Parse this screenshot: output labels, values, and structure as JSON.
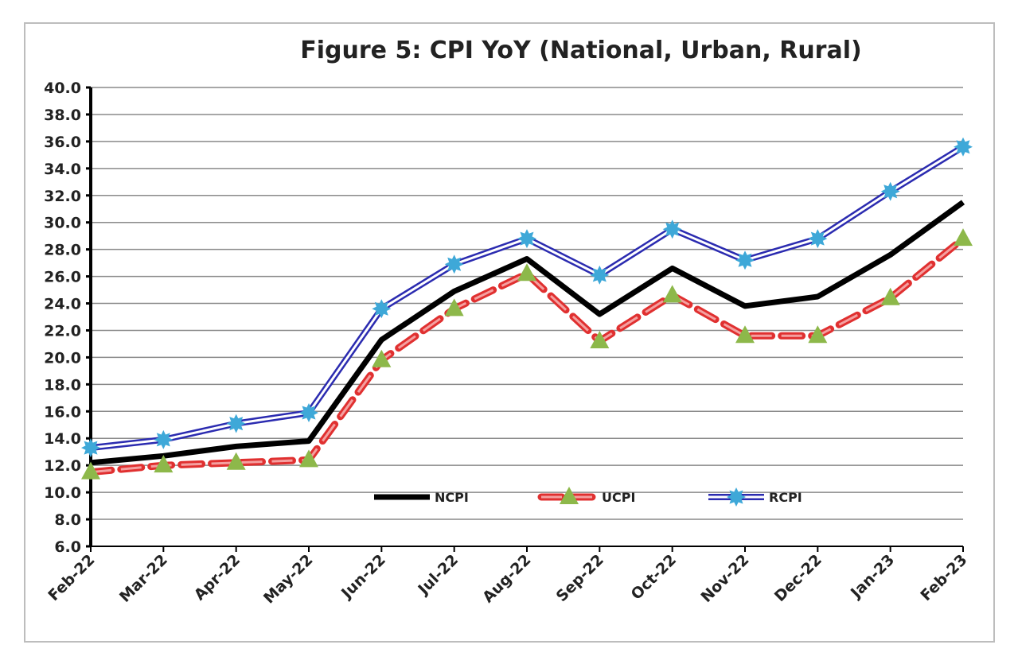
{
  "chart_data": {
    "type": "line",
    "title": "Figure 5: CPI YoY (National, Urban, Rural)",
    "xlabel": "",
    "ylabel": "",
    "categories": [
      "Feb-22",
      "Mar-22",
      "Apr-22",
      "May-22",
      "Jun-22",
      "Jul-22",
      "Aug-22",
      "Sep-22",
      "Oct-22",
      "Nov-22",
      "Dec-22",
      "Jan-23",
      "Feb-23"
    ],
    "ylim": [
      6.0,
      40.0
    ],
    "yticks": [
      "6.0",
      "8.0",
      "10.0",
      "12.0",
      "14.0",
      "16.0",
      "18.0",
      "20.0",
      "22.0",
      "24.0",
      "26.0",
      "28.0",
      "30.0",
      "32.0",
      "34.0",
      "36.0",
      "38.0",
      "40.0"
    ],
    "grid": true,
    "legend_placement": "bottom-center inside",
    "series": [
      {
        "name": "NCPI",
        "color": "#000000",
        "style": "solid",
        "values": [
          12.2,
          12.7,
          13.4,
          13.8,
          21.3,
          24.9,
          27.3,
          23.2,
          26.6,
          23.8,
          24.5,
          27.6,
          31.5
        ]
      },
      {
        "name": "UCPI",
        "color": "#e03030",
        "marker_color": "#8db84a",
        "style": "dashed",
        "values": [
          11.5,
          12.0,
          12.2,
          12.4,
          19.8,
          23.6,
          26.2,
          21.2,
          24.6,
          21.6,
          21.6,
          24.4,
          28.8
        ]
      },
      {
        "name": "RCPI",
        "color": "#2b2bb0",
        "marker_color": "#3ea8d8",
        "style": "double",
        "values": [
          13.3,
          13.9,
          15.1,
          15.9,
          23.6,
          26.9,
          28.8,
          26.1,
          29.5,
          27.2,
          28.8,
          32.3,
          35.6
        ]
      }
    ]
  }
}
